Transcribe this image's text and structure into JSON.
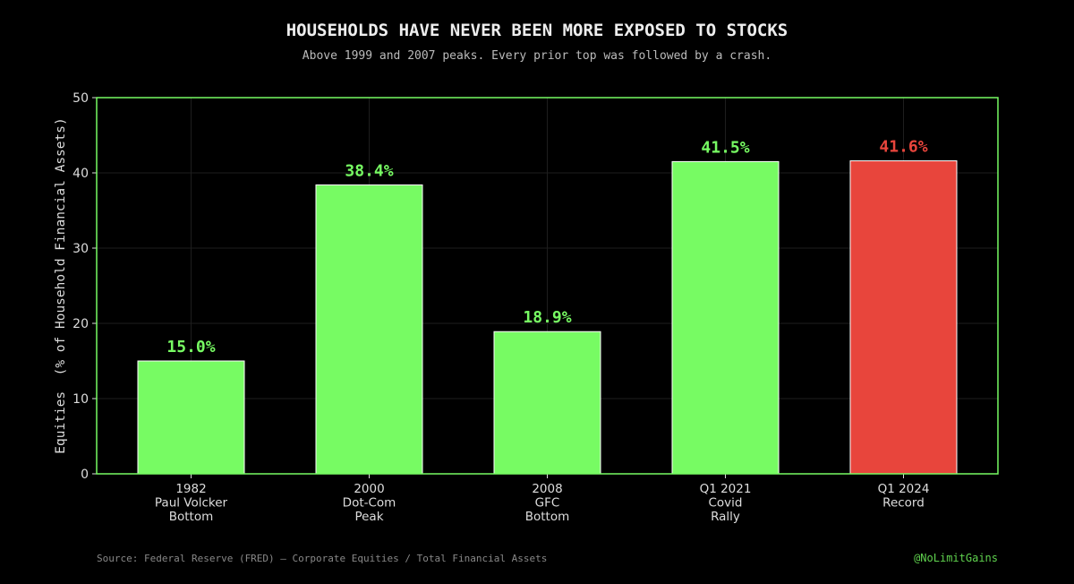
{
  "chart_data": {
    "type": "bar",
    "title": "HOUSEHOLDS HAVE NEVER BEEN MORE EXPOSED TO STOCKS",
    "subtitle": "Above 1999 and 2007 peaks. Every prior top was followed by a crash.",
    "ylabel": "Equities  (% of Household Financial Assets)",
    "xlabel": "",
    "ylim": [
      0,
      50
    ],
    "yticks": [
      "0",
      "10",
      "20",
      "30",
      "40",
      "50"
    ],
    "grid": true,
    "categories": [
      [
        "1982",
        "Paul Volcker",
        "Bottom"
      ],
      [
        "2000",
        "Dot-Com",
        "Peak"
      ],
      [
        "2008",
        "GFC",
        "Bottom"
      ],
      [
        "Q1 2021",
        "Covid",
        "Rally"
      ],
      [
        "Q1 2024",
        "Record"
      ]
    ],
    "values": [
      15.0,
      38.4,
      18.9,
      41.5,
      41.6
    ],
    "data_labels": [
      "15.0%",
      "38.4%",
      "18.9%",
      "41.5%",
      "41.6%"
    ],
    "bar_colors": [
      "#77fb63",
      "#77fb63",
      "#77fb63",
      "#77fb63",
      "#e8453c"
    ],
    "label_colors": [
      "#77fb63",
      "#77fb63",
      "#77fb63",
      "#77fb63",
      "#e8453c"
    ],
    "frame_color": "#77fb63"
  },
  "footer": {
    "source": "Source: Federal Reserve (FRED) — Corporate Equities / Total Financial Assets",
    "handle": "@NoLimitGains"
  }
}
